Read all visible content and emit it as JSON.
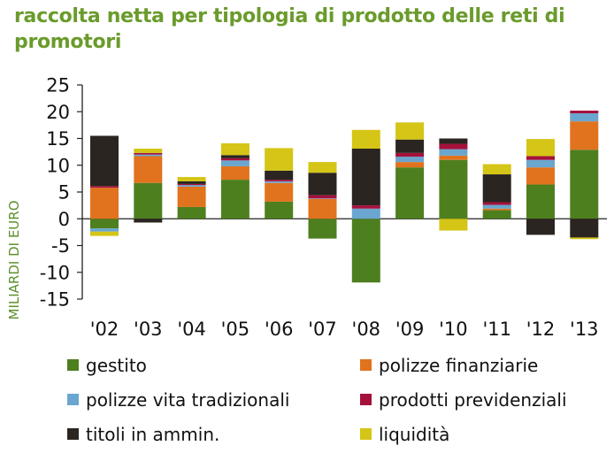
{
  "chart_data": {
    "type": "bar",
    "stacked": true,
    "title": "raccolta netta per tipologia di prodotto delle reti di promotori",
    "ylabel": "MILIARDI DI EURO",
    "xlabel": "",
    "ylim": [
      -15,
      25
    ],
    "yticks": [
      25,
      20,
      15,
      10,
      5,
      0,
      -5,
      -10,
      -15
    ],
    "categories": [
      "'02",
      "'03",
      "'04",
      "'05",
      "'06",
      "'07",
      "'08",
      "'09",
      "'10",
      "'11",
      "'12",
      "'13"
    ],
    "series": [
      {
        "name": "gestito",
        "color": "#4e7f1f",
        "values": [
          -1.8,
          6.7,
          2.2,
          7.3,
          3.2,
          -3.7,
          -11.9,
          9.6,
          11.0,
          1.6,
          6.4,
          12.9
        ]
      },
      {
        "name": "polizze finanziarie",
        "color": "#e1731e",
        "values": [
          5.8,
          5.0,
          3.8,
          2.5,
          3.5,
          3.7,
          0.0,
          1.0,
          0.8,
          0.3,
          3.2,
          5.3
        ]
      },
      {
        "name": "polizze vita tradizionali",
        "color": "#6aa6cf",
        "values": [
          -0.6,
          0.3,
          0.3,
          1.1,
          0.3,
          0.1,
          1.9,
          1.0,
          1.2,
          0.7,
          1.4,
          1.5
        ]
      },
      {
        "name": "prodotti previdenziali",
        "color": "#a5113b",
        "values": [
          0.3,
          0.3,
          0.2,
          0.4,
          0.3,
          0.6,
          0.6,
          0.7,
          1.0,
          0.5,
          0.7,
          0.5
        ]
      },
      {
        "name": "titoli in ammin.",
        "color": "#2a2520",
        "values": [
          9.4,
          -0.7,
          0.5,
          0.6,
          1.7,
          4.2,
          10.6,
          2.5,
          1.0,
          5.2,
          -3.0,
          -3.5
        ]
      },
      {
        "name": "liquidità",
        "color": "#d4c516",
        "values": [
          -0.8,
          0.8,
          0.8,
          2.2,
          4.2,
          2.0,
          3.5,
          3.2,
          -2.2,
          1.9,
          3.2,
          -0.3
        ]
      }
    ],
    "legend": {
      "placement": "bottom",
      "columns": 2
    },
    "grid": false
  }
}
